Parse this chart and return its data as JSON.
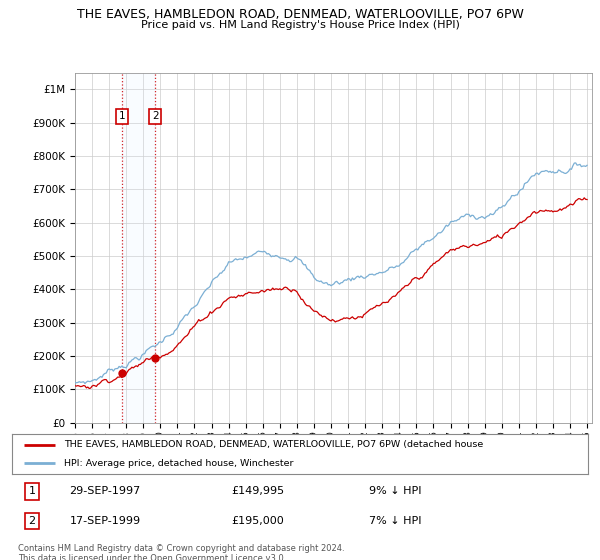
{
  "title": "THE EAVES, HAMBLEDON ROAD, DENMEAD, WATERLOOVILLE, PO7 6PW",
  "subtitle": "Price paid vs. HM Land Registry's House Price Index (HPI)",
  "ylim": [
    0,
    1050000
  ],
  "yticks": [
    0,
    100000,
    200000,
    300000,
    400000,
    500000,
    600000,
    700000,
    800000,
    900000,
    1000000
  ],
  "ytick_labels": [
    "£0",
    "£100K",
    "£200K",
    "£300K",
    "£400K",
    "£500K",
    "£600K",
    "£700K",
    "£800K",
    "£900K",
    "£1M"
  ],
  "hpi_color": "#7bafd4",
  "price_color": "#cc0000",
  "sale1_year": 1997.75,
  "sale1_price": 149995,
  "sale2_year": 1999.71,
  "sale2_price": 195000,
  "legend_line1": "THE EAVES, HAMBLEDON ROAD, DENMEAD, WATERLOOVILLE, PO7 6PW (detached house",
  "legend_line2": "HPI: Average price, detached house, Winchester",
  "footer1": "Contains HM Land Registry data © Crown copyright and database right 2024.",
  "footer2": "This data is licensed under the Open Government Licence v3.0.",
  "bg_color": "#ffffff",
  "grid_color": "#cccccc",
  "shade_color": "#ddeeff",
  "box_color": "#cc0000",
  "row1_date": "29-SEP-1997",
  "row1_price": "£149,995",
  "row1_hpi": "9% ↓ HPI",
  "row2_date": "17-SEP-1999",
  "row2_price": "£195,000",
  "row2_hpi": "7% ↓ HPI"
}
